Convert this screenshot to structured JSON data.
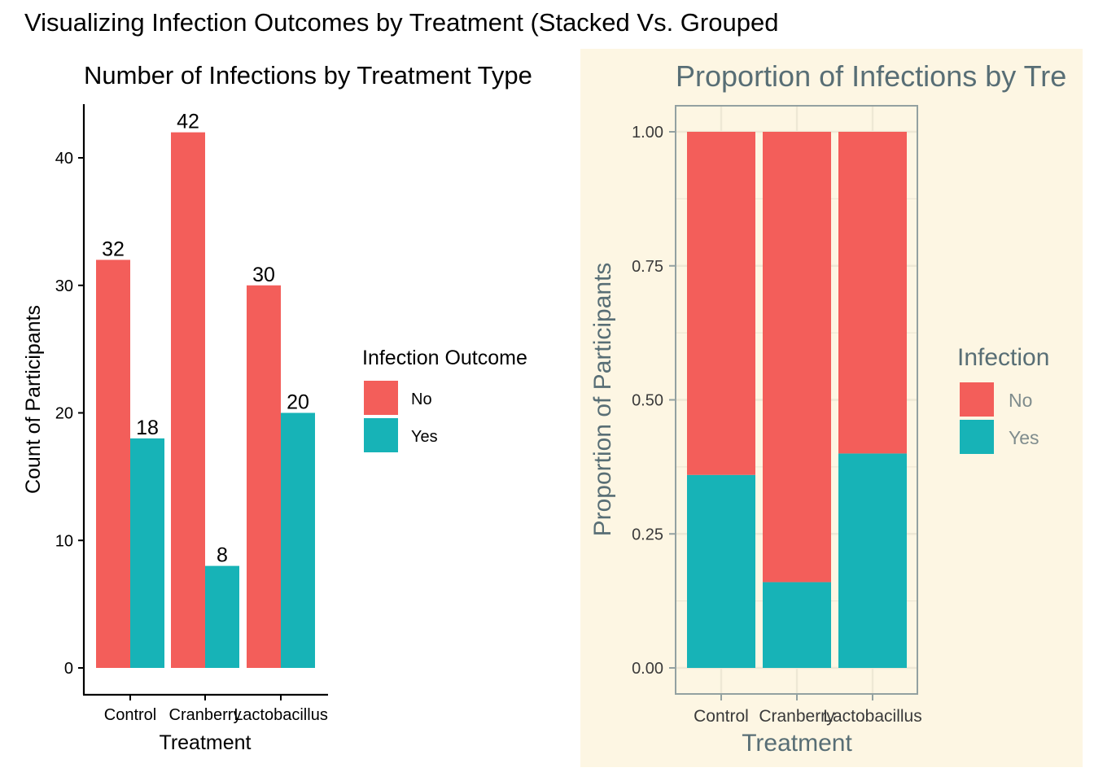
{
  "page_title": "Visualizing Infection Outcomes by Treatment (Stacked Vs. Grouped",
  "colors": {
    "no": "#F35E5A",
    "yes": "#17B3B7",
    "panel_bg": "#FDF6E3",
    "right_text": "#586E75",
    "right_axis": "#93A1A1"
  },
  "chart_data": [
    {
      "type": "bar",
      "mode": "grouped",
      "title": "Number of Infections by Treatment Type",
      "xlabel": "Treatment",
      "ylabel": "Count of Participants",
      "categories": [
        "Control",
        "Cranberry",
        "Lactobacillus"
      ],
      "series": [
        {
          "name": "No",
          "values": [
            32,
            42,
            30
          ]
        },
        {
          "name": "Yes",
          "values": [
            18,
            8,
            20
          ]
        }
      ],
      "data_labels": [
        [
          "32",
          "42",
          "30"
        ],
        [
          "18",
          "8",
          "20"
        ]
      ],
      "ylim": [
        -2.1,
        44.1
      ],
      "yticks": [
        0,
        10,
        20,
        30,
        40
      ],
      "ytick_labels": [
        "0",
        "10",
        "20",
        "30",
        "40"
      ],
      "grid": false,
      "legend": {
        "title": "Infection Outcome",
        "entries": [
          "No",
          "Yes"
        ],
        "position": "right"
      }
    },
    {
      "type": "bar",
      "mode": "stacked-proportion",
      "title": "Proportion of Infections by Tre",
      "xlabel": "Treatment",
      "ylabel": "Proportion of Participants",
      "categories": [
        "Control",
        "Cranberry",
        "Lactobacillus"
      ],
      "series": [
        {
          "name": "Yes",
          "values": [
            0.36,
            0.16,
            0.4
          ]
        },
        {
          "name": "No",
          "values": [
            0.64,
            0.84,
            0.6
          ]
        }
      ],
      "ylim": [
        -0.05,
        1.05
      ],
      "yticks": [
        0,
        0.25,
        0.5,
        0.75,
        1.0
      ],
      "ytick_labels": [
        "0.00",
        "0.25",
        "0.50",
        "0.75",
        "1.00"
      ],
      "grid": true,
      "legend": {
        "title": "Infection",
        "entries": [
          "No",
          "Yes"
        ],
        "position": "right"
      }
    }
  ]
}
